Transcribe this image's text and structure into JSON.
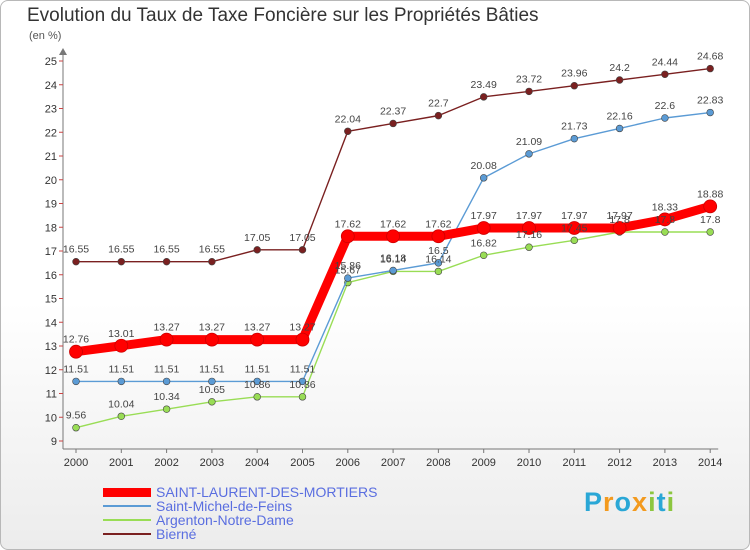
{
  "title": "Evolution du Taux de Taxe Foncière sur les Propriétés Bâties",
  "subtitle": "(en %)",
  "brand": {
    "chars": [
      "P",
      "r",
      "o",
      "x",
      "i",
      "t",
      "i"
    ],
    "colors": [
      "#2aa7d6",
      "#f39a1e",
      "#2aa7d6",
      "#f39a1e",
      "#8cc63f",
      "#2aa7d6",
      "#8cc63f"
    ]
  },
  "chart_data": {
    "type": "line",
    "title": "Evolution du Taux de Taxe Foncière sur les Propriétés Bâties",
    "ylabel": "(en %)",
    "x": [
      "2000",
      "2001",
      "2002",
      "2003",
      "2004",
      "2005",
      "2006",
      "2007",
      "2008",
      "2009",
      "2010",
      "2011",
      "2012",
      "2013",
      "2014"
    ],
    "ylim": [
      9,
      25
    ],
    "yticks": [
      9,
      10,
      11,
      12,
      13,
      14,
      15,
      16,
      17,
      18,
      19,
      20,
      21,
      22,
      23,
      24,
      25
    ],
    "grid": false,
    "legend": "bottom-left",
    "series": [
      {
        "name": "SAINT-LAURENT-DES-MORTIERS",
        "color": "#ff0000",
        "values": [
          12.76,
          13.01,
          13.27,
          13.27,
          13.27,
          13.27,
          17.62,
          17.62,
          17.62,
          17.97,
          17.97,
          17.97,
          17.97,
          18.33,
          18.88
        ],
        "labels": [
          "12.76",
          "13.01",
          "13.27",
          "13.27",
          "13.27",
          "13.27",
          "17.62",
          "17.62",
          "17.62",
          "17.97",
          "17.97",
          "17.97",
          "17.97",
          "18.33",
          "18.88"
        ]
      },
      {
        "name": "Saint-Michel-de-Feins",
        "color": "#5b9bd5",
        "values": [
          11.51,
          11.51,
          11.51,
          11.51,
          11.51,
          11.51,
          15.86,
          16.18,
          16.5,
          20.08,
          21.09,
          21.73,
          22.16,
          22.6,
          22.83
        ],
        "labels": [
          "11.51",
          "11.51",
          "11.51",
          "11.51",
          "11.51",
          "11.51",
          "15.86",
          "16.18",
          "16.5",
          "20.08",
          "21.09",
          "21.73",
          "22.16",
          "22.6",
          "22.83"
        ]
      },
      {
        "name": "Argenton-Notre-Dame",
        "color": "#99dd55",
        "values": [
          9.56,
          10.04,
          10.34,
          10.65,
          10.86,
          10.86,
          15.67,
          16.14,
          16.14,
          16.82,
          17.16,
          17.45,
          17.8,
          17.8,
          17.8
        ],
        "labels": [
          "9.56",
          "10.04",
          "10.34",
          "10.65",
          "10.86",
          "10.86",
          "15.67",
          "16.14",
          "16.14",
          "16.82",
          "17.16",
          "17.45",
          "17.8",
          "17.8",
          "17.8"
        ]
      },
      {
        "name": "Bierné",
        "color": "#7a2020",
        "values": [
          16.55,
          16.55,
          16.55,
          16.55,
          17.05,
          17.05,
          22.04,
          22.37,
          22.7,
          23.49,
          23.72,
          23.96,
          24.2,
          24.44,
          24.68
        ],
        "labels": [
          "16.55",
          "16.55",
          "16.55",
          "16.55",
          "17.05",
          "17.05",
          "22.04",
          "22.37",
          "22.7",
          "23.49",
          "23.72",
          "23.96",
          "24.2",
          "24.44",
          "24.68"
        ]
      }
    ]
  }
}
